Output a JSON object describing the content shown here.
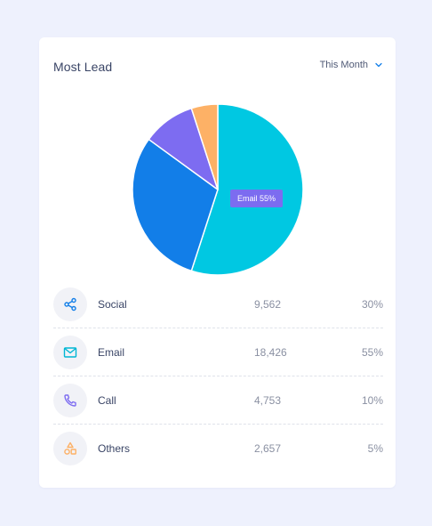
{
  "card": {
    "title": "Most Lead"
  },
  "filter": {
    "selected": "This Month",
    "icon": "chevron-down-icon"
  },
  "colors": {
    "email": "#00c8e2",
    "social": "#127ee8",
    "call": "#7d6cf1",
    "others": "#fdb166",
    "tooltip": "#7c6cf0"
  },
  "tooltip": {
    "text": "Email 55%"
  },
  "chart_data": {
    "type": "pie",
    "slices": [
      {
        "label": "Email",
        "value": 55,
        "color": "#00c8e2"
      },
      {
        "label": "Social",
        "value": 30,
        "color": "#127ee8"
      },
      {
        "label": "Call",
        "value": 10,
        "color": "#7d6cf1"
      },
      {
        "label": "Others",
        "value": 5,
        "color": "#fdb166"
      }
    ]
  },
  "rows": [
    {
      "label": "Social",
      "value": "9,562",
      "percent": "30%",
      "icon": "share-icon"
    },
    {
      "label": "Email",
      "value": "18,426",
      "percent": "55%",
      "icon": "mail-icon"
    },
    {
      "label": "Call",
      "value": "4,753",
      "percent": "10%",
      "icon": "phone-icon"
    },
    {
      "label": "Others",
      "value": "2,657",
      "percent": "5%",
      "icon": "shapes-icon"
    }
  ]
}
